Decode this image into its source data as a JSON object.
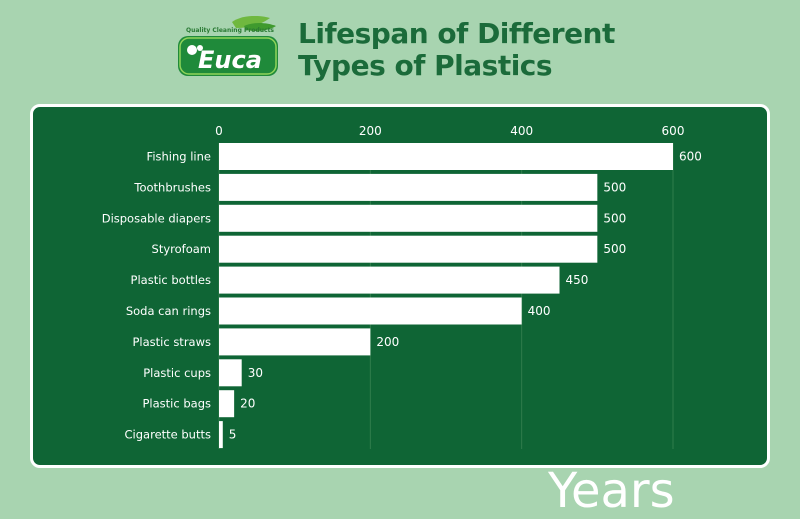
{
  "header": {
    "title_line1": "Lifespan of Different",
    "title_line2": "Types of Plastics",
    "logo_text": "Euca",
    "logo_tagline": "Quality Cleaning Products"
  },
  "colors": {
    "background": "#a8d4b0",
    "panel": "#0f6535",
    "title": "#1b6b3a",
    "bar": "#ffffff"
  },
  "chart_data": {
    "type": "bar",
    "orientation": "horizontal",
    "categories": [
      "Fishing line",
      "Toothbrushes",
      "Disposable diapers",
      "Styrofoam",
      "Plastic bottles",
      "Soda can rings",
      "Plastic straws",
      "Plastic cups",
      "Plastic bags",
      "Cigarette butts"
    ],
    "values": [
      600,
      500,
      500,
      500,
      450,
      400,
      200,
      30,
      20,
      5
    ],
    "xlim": [
      0,
      600
    ],
    "xticks": [
      0,
      200,
      400,
      600
    ],
    "tick_position": "top",
    "grid": true,
    "data_labels": true,
    "unit_label": "Years"
  }
}
